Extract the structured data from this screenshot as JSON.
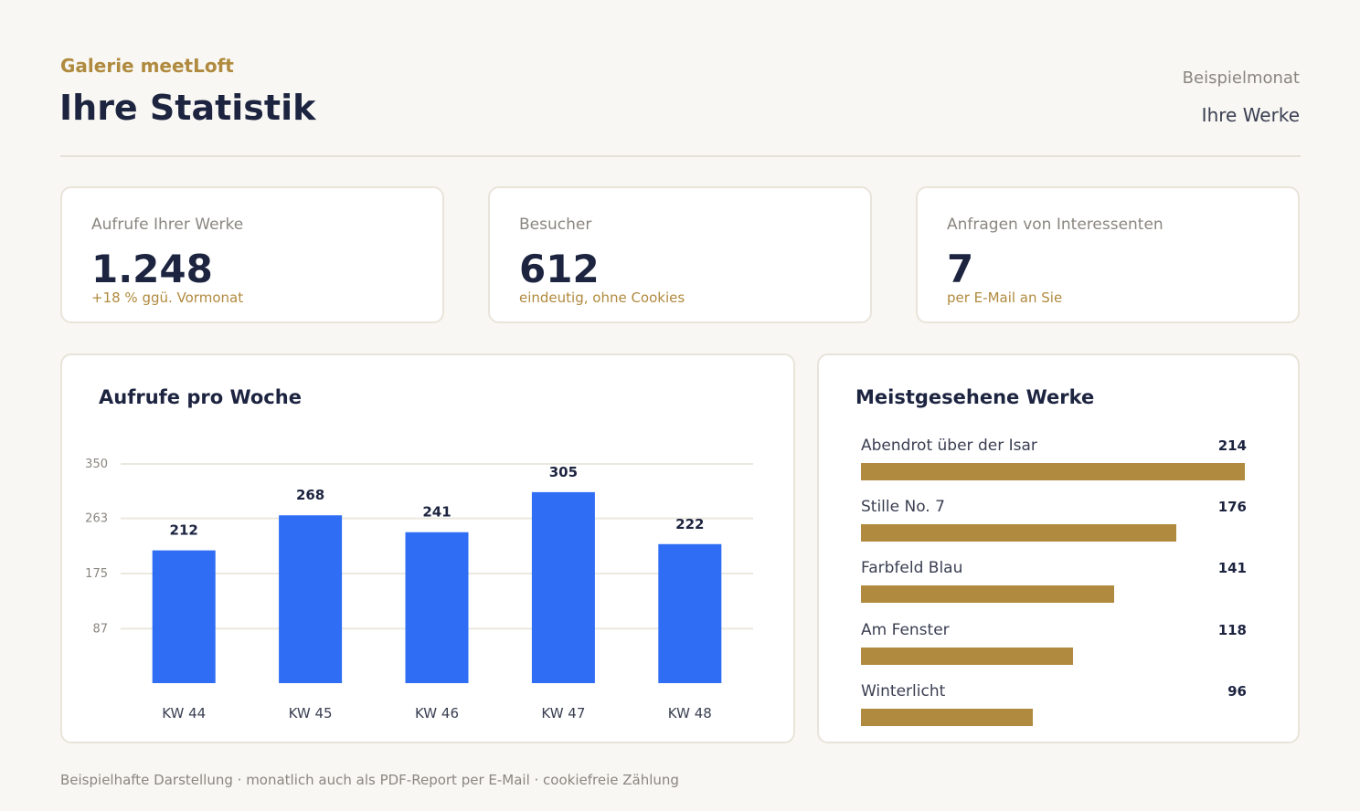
{
  "header": {
    "brand": "Galerie meetLoft",
    "title": "Ihre Statistik",
    "period": "Beispielmonat",
    "scope": "Ihre Werke"
  },
  "stats": [
    {
      "label": "Aufrufe Ihrer Werke",
      "value": "1.248",
      "sub": "+18 % ggü. Vormonat"
    },
    {
      "label": "Besucher",
      "value": "612",
      "sub": "eindeutig, ohne Cookies"
    },
    {
      "label": "Anfragen von Interessenten",
      "value": "7",
      "sub": "per E-Mail an Sie"
    }
  ],
  "weekly": {
    "title": "Aufrufe pro Woche"
  },
  "top_works": {
    "title": "Meistgesehene Werke",
    "items": [
      {
        "name": "Abendrot über der Isar",
        "count": "214",
        "value": 214
      },
      {
        "name": "Stille No. 7",
        "count": "176",
        "value": 176
      },
      {
        "name": "Farbfeld Blau",
        "count": "141",
        "value": 141
      },
      {
        "name": "Am Fenster",
        "count": "118",
        "value": 118
      },
      {
        "name": "Winterlicht",
        "count": "96",
        "value": 96
      }
    ]
  },
  "footer": "Beispielhafte Darstellung · monatlich auch als PDF-Report per E-Mail · cookiefreie Zählung",
  "colors": {
    "bar": "#2f6df4",
    "accent": "#b08a3e",
    "text": "#1d2440"
  },
  "chart_data": {
    "type": "bar",
    "title": "Aufrufe pro Woche",
    "categories": [
      "KW 44",
      "KW 45",
      "KW 46",
      "KW 47",
      "KW 48"
    ],
    "values": [
      212,
      268,
      241,
      305,
      222
    ],
    "yticks": [
      87,
      175,
      263,
      350
    ],
    "ylim": [
      0,
      350
    ],
    "grid": true,
    "xlabel": "",
    "ylabel": ""
  }
}
